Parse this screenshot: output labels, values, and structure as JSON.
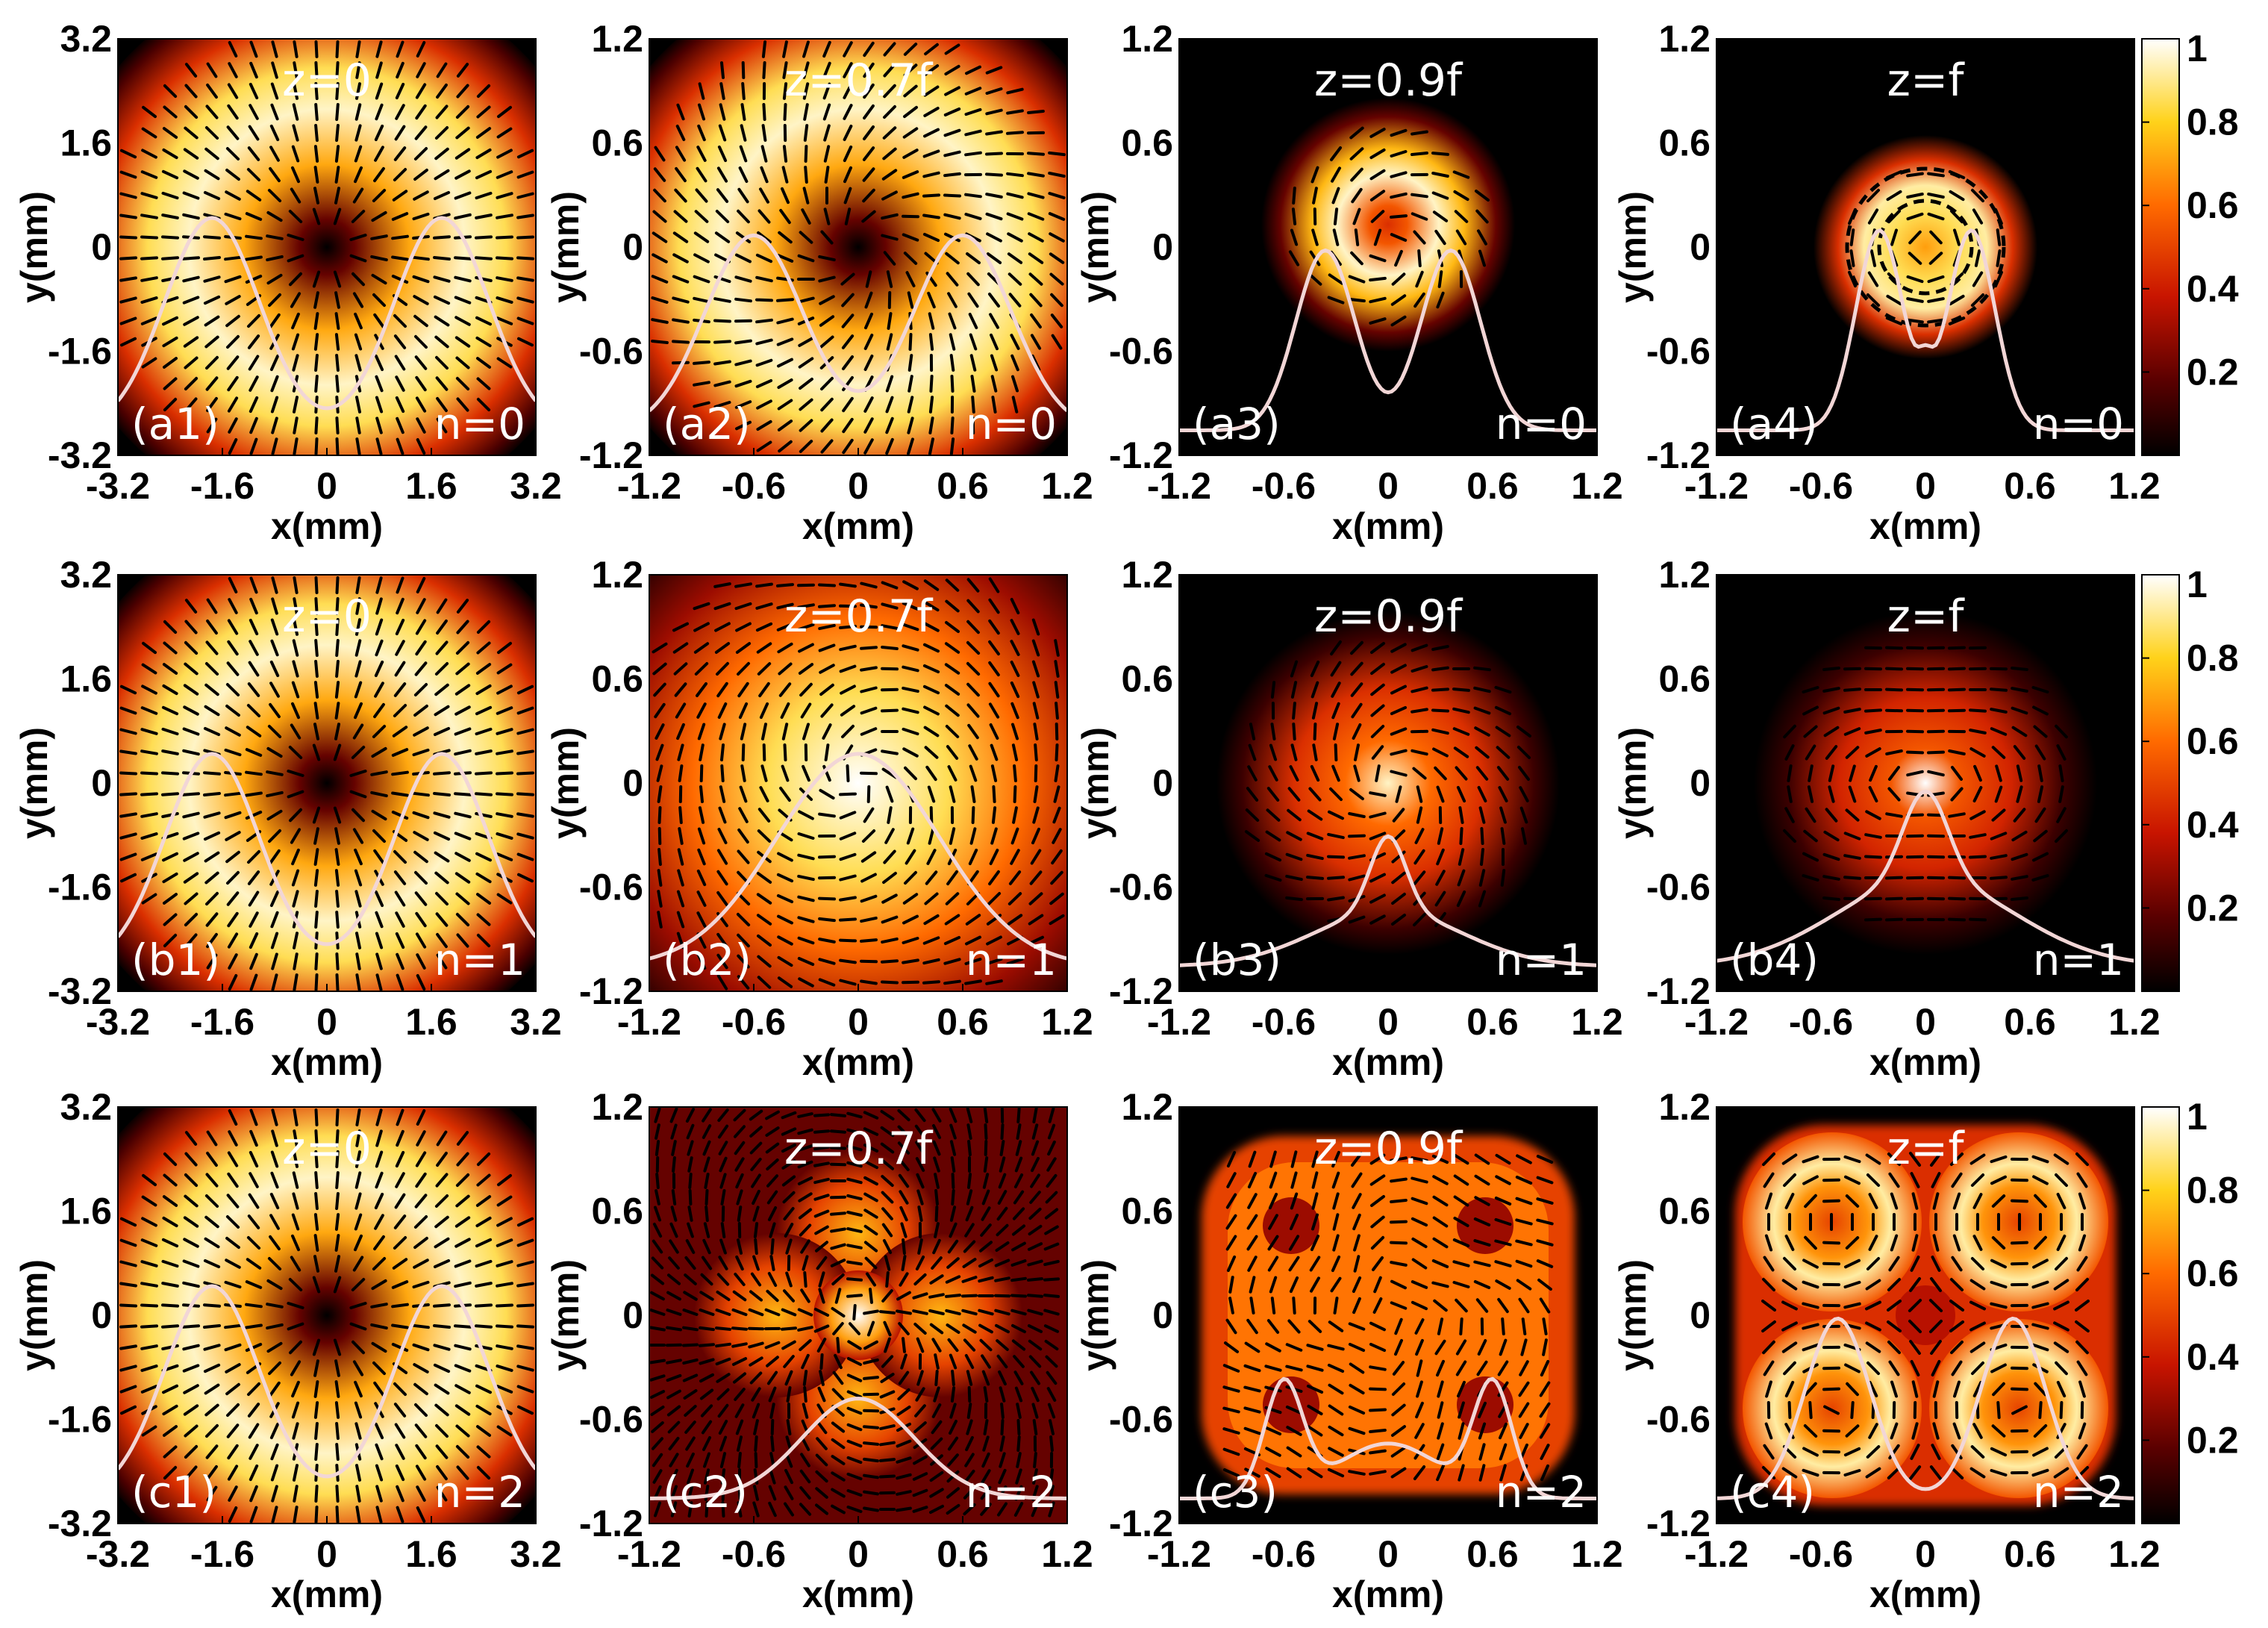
{
  "chart_data": {
    "type": "heatmap",
    "colorbar": {
      "ticks": [
        "1",
        "0.8",
        "0.6",
        "0.4",
        "0.2"
      ],
      "colormap": [
        "#000000",
        "#5a0000",
        "#c81400",
        "#ff6a00",
        "#ffd21a",
        "#ffffff"
      ]
    },
    "xlabel": "x(mm)",
    "ylabel": "y(mm)",
    "vector_color": "#000000",
    "profile_color": "#f2d6d6",
    "rows": [
      {
        "n_label": "n=0",
        "panels": [
          {
            "id": "(a1)",
            "title": "z=0",
            "ticks": [
              "-3.2",
              "-1.6",
              "0",
              "1.6",
              "3.2"
            ],
            "range": [
              -3.2,
              3.2
            ],
            "pattern": "donut_radial"
          },
          {
            "id": "(a2)",
            "title": "z=0.7f",
            "ticks": [
              "-1.2",
              "-0.6",
              "0",
              "0.6",
              "1.2"
            ],
            "range": [
              -1.2,
              1.2
            ],
            "pattern": "donut_twisted"
          },
          {
            "id": "(a3)",
            "title": "z=0.9f",
            "ticks": [
              "-1.2",
              "-0.6",
              "0",
              "0.6",
              "1.2"
            ],
            "range": [
              -1.2,
              1.2
            ],
            "pattern": "small_ring_spiral"
          },
          {
            "id": "(a4)",
            "title": "z=f",
            "ticks": [
              "-1.2",
              "-0.6",
              "0",
              "0.6",
              "1.2"
            ],
            "range": [
              -1.2,
              1.2
            ],
            "pattern": "focus_ring_azimuthal"
          }
        ]
      },
      {
        "n_label": "n=1",
        "panels": [
          {
            "id": "(b1)",
            "title": "z=0",
            "ticks": [
              "-3.2",
              "-1.6",
              "0",
              "1.6",
              "3.2"
            ],
            "range": [
              -3.2,
              3.2
            ],
            "pattern": "donut_radial"
          },
          {
            "id": "(b2)",
            "title": "z=0.7f",
            "ticks": [
              "-1.2",
              "-0.6",
              "0",
              "0.6",
              "1.2"
            ],
            "range": [
              -1.2,
              1.2
            ],
            "pattern": "filled_spiral"
          },
          {
            "id": "(b3)",
            "title": "z=0.9f",
            "ticks": [
              "-1.2",
              "-0.6",
              "0",
              "0.6",
              "1.2"
            ],
            "range": [
              -1.2,
              1.2
            ],
            "pattern": "diffuse_spiral"
          },
          {
            "id": "(b4)",
            "title": "z=f",
            "ticks": [
              "-1.2",
              "-0.6",
              "0",
              "0.6",
              "1.2"
            ],
            "range": [
              -1.2,
              1.2
            ],
            "pattern": "focus_cross"
          }
        ]
      },
      {
        "n_label": "n=2",
        "panels": [
          {
            "id": "(c1)",
            "title": "z=0",
            "ticks": [
              "-3.2",
              "-1.6",
              "0",
              "1.6",
              "3.2"
            ],
            "range": [
              -3.2,
              3.2
            ],
            "pattern": "donut_radial"
          },
          {
            "id": "(c2)",
            "title": "z=0.7f",
            "ticks": [
              "-1.2",
              "-0.6",
              "0",
              "0.6",
              "1.2"
            ],
            "range": [
              -1.2,
              1.2
            ],
            "pattern": "cross_lobes"
          },
          {
            "id": "(c3)",
            "title": "z=0.9f",
            "ticks": [
              "-1.2",
              "-0.6",
              "0",
              "0.6",
              "1.2"
            ],
            "range": [
              -1.2,
              1.2
            ],
            "pattern": "swirl_square"
          },
          {
            "id": "(c4)",
            "title": "z=f",
            "ticks": [
              "-1.2",
              "-0.6",
              "0",
              "0.6",
              "1.2"
            ],
            "range": [
              -1.2,
              1.2
            ],
            "pattern": "four_rings"
          }
        ]
      }
    ]
  }
}
